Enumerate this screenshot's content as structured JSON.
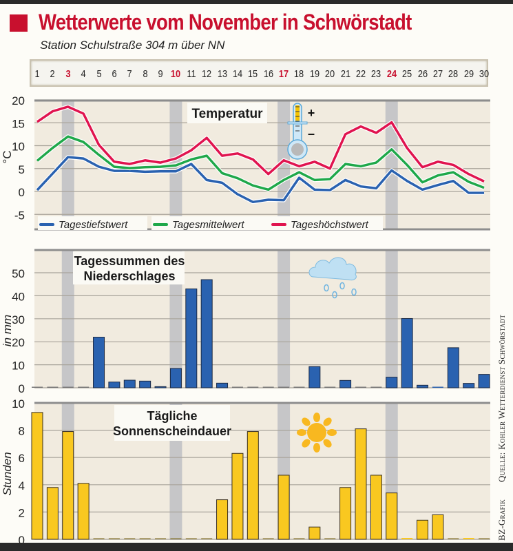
{
  "header": {
    "title": "Wetterwerte vom November in Schwörstadt",
    "subtitle": "Station Schulstraße 304 m über NN"
  },
  "days": [
    "1",
    "2",
    "3",
    "4",
    "5",
    "6",
    "7",
    "8",
    "9",
    "10",
    "11",
    "12",
    "13",
    "14",
    "15",
    "16",
    "17",
    "18",
    "19",
    "20",
    "21",
    "22",
    "23",
    "24",
    "25",
    "26",
    "27",
    "28",
    "29",
    "30"
  ],
  "highlight_days": [
    3,
    10,
    17,
    24
  ],
  "colors": {
    "title_red": "#c8102e",
    "low": "#2a62b0",
    "mean": "#1fa84a",
    "high": "#e0144f",
    "bar_blue": "#2a62b0",
    "bar_yellow": "#f9c820",
    "panel_bg": "#f1ebdf",
    "highlight_column": "#c6c6c8"
  },
  "credits": {
    "source": "Quelle: Kohler Wetterdienst Schwörstadt",
    "grafik": "BZ-Grafik"
  },
  "chart_data": [
    {
      "type": "line",
      "title": "Temperatur",
      "ylabel": "°C",
      "ylim": [
        -5,
        20
      ],
      "yticks": [
        "20",
        "15",
        "10",
        "5",
        "0",
        "-5"
      ],
      "ytick_values": [
        20,
        15,
        10,
        5,
        0,
        -5
      ],
      "grid": true,
      "legend": "bottom",
      "x": [
        1,
        2,
        3,
        4,
        5,
        6,
        7,
        8,
        9,
        10,
        11,
        12,
        13,
        14,
        15,
        16,
        17,
        18,
        19,
        20,
        21,
        22,
        23,
        24,
        25,
        26,
        27,
        28,
        29,
        30
      ],
      "series": [
        {
          "name": "Tagestiefstwert",
          "key": "low",
          "values": [
            0.3,
            3.9,
            7.5,
            7.2,
            5.4,
            4.5,
            4.5,
            4.3,
            4.4,
            4.4,
            6.0,
            2.5,
            1.9,
            -0.6,
            -2.3,
            -1.8,
            -1.9,
            3.0,
            0.4,
            0.3,
            2.5,
            1.1,
            0.7,
            4.6,
            2.3,
            0.4,
            1.4,
            2.3,
            -0.3,
            -0.3
          ]
        },
        {
          "name": "Tagesmittelwert",
          "key": "mean",
          "values": [
            6.7,
            9.5,
            12.0,
            10.8,
            8.0,
            5.4,
            5.1,
            5.3,
            5.4,
            5.7,
            7.0,
            7.8,
            4.0,
            2.9,
            1.3,
            0.4,
            2.5,
            4.2,
            2.5,
            2.7,
            6.0,
            5.5,
            6.3,
            9.2,
            5.8,
            2.0,
            3.5,
            4.2,
            2.1,
            0.8
          ]
        },
        {
          "name": "Tageshöchstwert",
          "key": "high",
          "values": [
            15.2,
            17.5,
            18.5,
            17.0,
            10.2,
            6.5,
            6.0,
            6.8,
            6.3,
            7.2,
            9.0,
            11.7,
            7.8,
            8.3,
            7.0,
            3.8,
            6.8,
            5.5,
            6.5,
            5.0,
            12.5,
            14.2,
            12.8,
            15.1,
            9.5,
            5.3,
            6.5,
            5.8,
            3.8,
            2.2
          ]
        }
      ]
    },
    {
      "type": "bar",
      "title": "Tagessummen des Niederschlages",
      "ylabel": "in mm",
      "ylim": [
        0,
        55
      ],
      "yticks": [
        "50",
        "40",
        "30",
        "20",
        "10",
        "0"
      ],
      "ytick_values": [
        50,
        40,
        30,
        20,
        10,
        0
      ],
      "grid": true,
      "x": [
        1,
        2,
        3,
        4,
        5,
        6,
        7,
        8,
        9,
        10,
        11,
        12,
        13,
        14,
        15,
        16,
        17,
        18,
        19,
        20,
        21,
        22,
        23,
        24,
        25,
        26,
        27,
        28,
        29,
        30
      ],
      "values": [
        0,
        0,
        0,
        0,
        22,
        2.5,
        3.3,
        2.9,
        0.5,
        8.4,
        43,
        47,
        2,
        0,
        0,
        0,
        0,
        0,
        9.2,
        0,
        3.2,
        0,
        0,
        4.6,
        30.1,
        1.1,
        0.3,
        17.4,
        1.9,
        5.8
      ]
    },
    {
      "type": "bar",
      "title": "Tägliche Sonnenscheindauer",
      "ylabel": "Stunden",
      "ylim": [
        0,
        10
      ],
      "yticks": [
        "10",
        "8",
        "6",
        "4",
        "2",
        "0"
      ],
      "ytick_values": [
        10,
        8,
        6,
        4,
        2,
        0
      ],
      "grid": true,
      "x": [
        1,
        2,
        3,
        4,
        5,
        6,
        7,
        8,
        9,
        10,
        11,
        12,
        13,
        14,
        15,
        16,
        17,
        18,
        19,
        20,
        21,
        22,
        23,
        24,
        25,
        26,
        27,
        28,
        29,
        30
      ],
      "values": [
        9.3,
        3.8,
        7.9,
        4.1,
        0,
        0,
        0,
        0,
        0,
        0,
        0,
        0,
        2.9,
        6.3,
        7.9,
        0,
        4.7,
        0,
        0.9,
        0,
        3.8,
        8.1,
        4.7,
        3.4,
        0.1,
        1.4,
        1.8,
        0,
        0.1,
        0
      ]
    }
  ],
  "titles": {
    "temp": "Temperatur",
    "precip_line1": "Tagessummen des",
    "precip_line2": "Niederschlages",
    "sun_line1": "Tägliche",
    "sun_line2": "Sonnenscheindauer"
  },
  "icons": {
    "thermometer": "thermometer-icon",
    "thermo_plus": "+",
    "thermo_minus": "–",
    "cloud": "rain-cloud-icon",
    "sun": "sun-icon"
  }
}
